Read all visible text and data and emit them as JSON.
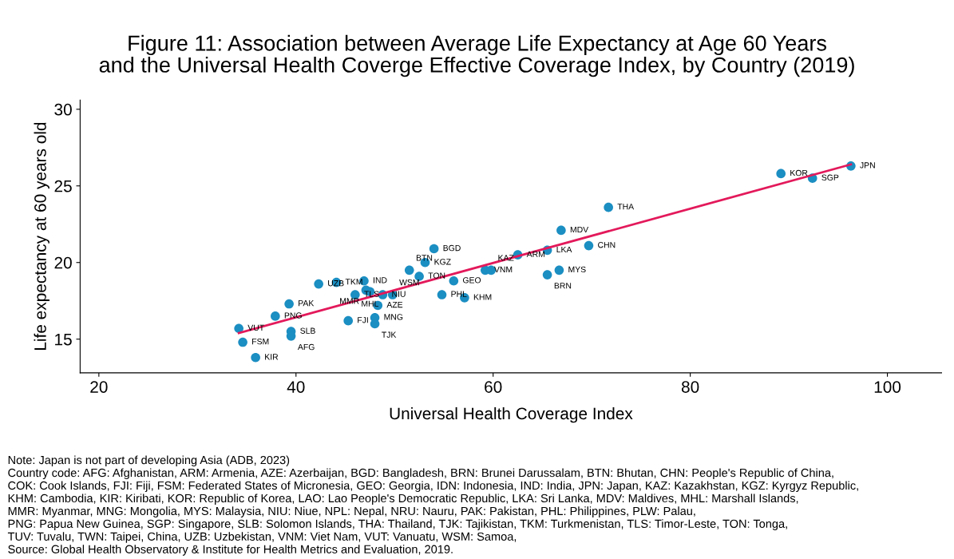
{
  "chart_data": {
    "type": "scatter",
    "title": "Figure 11: Association between Average Life Expectancy at Age 60 Years\nand the Universal Health Coverge Effective Coverage Index, by Country (2019)",
    "xlabel": "Universal Health Coverage Index",
    "ylabel": "Life expectancy at 60 years old",
    "xlim": [
      18.1,
      105.5
    ],
    "ylim": [
      12.8,
      30.6
    ],
    "xticks": [
      20,
      40,
      60,
      80,
      100
    ],
    "yticks": [
      15,
      20,
      25,
      30
    ],
    "grid": false,
    "legend": false,
    "series": [
      {
        "marker": "circle",
        "color": "#1b8ec2",
        "x": [
          96.3,
          92.4,
          89.2,
          71.7,
          66.9,
          69.7,
          65.5,
          62.5,
          66.7,
          65.5,
          59.2,
          59.8,
          54.0,
          53.1,
          51.5,
          52.5,
          56.0,
          54.8,
          57.1,
          46.9,
          44.1,
          42.3,
          46.0,
          47.1,
          47.5,
          48.8,
          49.8,
          48.3,
          48.0,
          48.0,
          45.3,
          39.3,
          37.9,
          34.2,
          39.5,
          39.5,
          34.6,
          35.9
        ],
        "values": [
          26.3,
          25.5,
          25.8,
          23.6,
          22.1,
          21.1,
          20.8,
          20.5,
          19.5,
          19.2,
          19.5,
          19.5,
          20.9,
          20.0,
          19.5,
          19.1,
          18.8,
          17.9,
          17.7,
          18.8,
          18.7,
          18.6,
          17.9,
          18.2,
          18.1,
          17.9,
          17.9,
          17.2,
          16.4,
          16.0,
          16.2,
          17.3,
          16.5,
          15.7,
          15.5,
          15.2,
          14.8,
          13.8
        ]
      },
      {
        "type": "line",
        "color": "#e3195b",
        "x": [
          34.2,
          96.3
        ],
        "values": [
          15.4,
          26.4
        ]
      }
    ],
    "annotations": [
      {
        "text": "JPN",
        "x": 96.3,
        "y": 26.3
      },
      {
        "text": "SGP",
        "x": 92.4,
        "y": 25.5
      },
      {
        "text": "KOR",
        "x": 89.2,
        "y": 25.8
      },
      {
        "text": "THA",
        "x": 71.7,
        "y": 23.6
      },
      {
        "text": "MDV",
        "x": 66.9,
        "y": 22.1
      },
      {
        "text": "CHN",
        "x": 69.7,
        "y": 21.1
      },
      {
        "text": "LKA",
        "x": 65.5,
        "y": 20.8
      },
      {
        "text": "ARM",
        "x": 62.5,
        "y": 20.5
      },
      {
        "text": "MYS",
        "x": 66.7,
        "y": 19.5
      },
      {
        "text": "BRN",
        "x": 65.5,
        "y": 19.2
      },
      {
        "text": "VNM",
        "x": 59.2,
        "y": 19.5
      },
      {
        "text": "KAZ",
        "x": 59.8,
        "y": 19.5
      },
      {
        "text": "BGD",
        "x": 54.0,
        "y": 20.9
      },
      {
        "text": "KGZ",
        "x": 53.1,
        "y": 20.0
      },
      {
        "text": "BTN",
        "x": 51.5,
        "y": 19.5
      },
      {
        "text": "TON",
        "x": 52.5,
        "y": 19.1
      },
      {
        "text": "GEO",
        "x": 56.0,
        "y": 18.8
      },
      {
        "text": "PHL",
        "x": 54.8,
        "y": 17.9
      },
      {
        "text": "KHM",
        "x": 57.1,
        "y": 17.7
      },
      {
        "text": "IND",
        "x": 46.9,
        "y": 18.8
      },
      {
        "text": "TKM",
        "x": 44.1,
        "y": 18.7
      },
      {
        "text": "UZB",
        "x": 42.3,
        "y": 18.6
      },
      {
        "text": "TLS",
        "x": 46.0,
        "y": 17.9
      },
      {
        "text": "MMR",
        "x": 47.1,
        "y": 18.2
      },
      {
        "text": "MHL",
        "x": 47.5,
        "y": 18.1
      },
      {
        "text": "NIU",
        "x": 48.8,
        "y": 17.9
      },
      {
        "text": "WSM",
        "x": 49.8,
        "y": 17.9
      },
      {
        "text": "AZE",
        "x": 48.3,
        "y": 17.2
      },
      {
        "text": "MNG",
        "x": 48.0,
        "y": 16.4
      },
      {
        "text": "TJK",
        "x": 48.0,
        "y": 16.0
      },
      {
        "text": "FJI",
        "x": 45.3,
        "y": 16.2
      },
      {
        "text": "PAK",
        "x": 39.3,
        "y": 17.3
      },
      {
        "text": "PNG",
        "x": 37.9,
        "y": 16.5
      },
      {
        "text": "VUT",
        "x": 34.2,
        "y": 15.7
      },
      {
        "text": "SLB",
        "x": 39.5,
        "y": 15.5
      },
      {
        "text": "AFG",
        "x": 39.5,
        "y": 15.2
      },
      {
        "text": "FSM",
        "x": 34.6,
        "y": 14.8
      },
      {
        "text": "KIR",
        "x": 35.9,
        "y": 13.8
      },
      "Note: Japan is not part of developing Asia (ADB, 2023)",
      "Country code: AFG: Afghanistan, ARM: Armenia, AZE: Azerbaijan, BGD: Bangladesh, BRN: Brunei Darussalam, BTN: Bhutan, CHN: People's Republic of China,",
      "COK: Cook Islands, FJI: Fiji, FSM: Federated States of Micronesia, GEO: Georgia, IDN: Indonesia, IND: India, JPN: Japan, KAZ: Kazakhstan, KGZ: Kyrgyz Republic,",
      "KHM: Cambodia, KIR: Kiribati, KOR: Republic of Korea, LAO: Lao People's Democratic Republic, LKA: Sri Lanka, MDV: Maldives, MHL: Marshall Islands,",
      "MMR: Myanmar, MNG: Mongolia, MYS: Malaysia, NIU: Niue, NPL: Nepal, NRU: Nauru, PAK: Pakistan, PHL: Philippines, PLW: Palau,",
      "PNG: Papua New Guinea, SGP: Singapore, SLB: Solomon Islands, THA: Thailand, TJK: Tajikistan, TKM: Turkmenistan, TLS: Timor-Leste, TON: Tonga,",
      "TUV: Tuvalu, TWN: Taipei, China, UZB: Uzbekistan, VNM: Viet Nam, VUT: Vanuatu, WSM: Samoa,",
      "Source: Global Health Observatory & Institute for Health Metrics and Evaluation, 2019."
    ]
  }
}
